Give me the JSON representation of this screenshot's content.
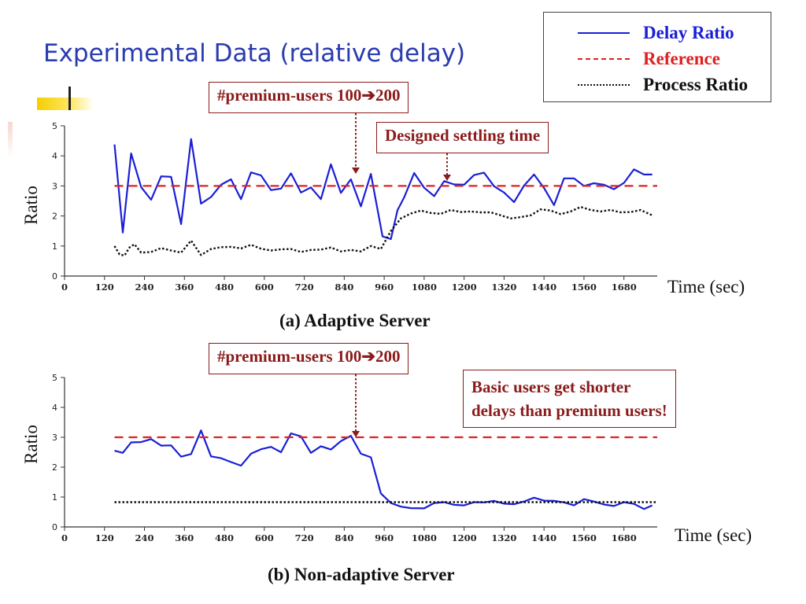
{
  "slide": {
    "title": "Experimental Data (relative delay)"
  },
  "legend": [
    {
      "label": "Delay Ratio",
      "color": "#1a1fd6",
      "style": "solid"
    },
    {
      "label": "Reference",
      "color": "#e02020",
      "style": "dashed"
    },
    {
      "label": "Process Ratio",
      "color": "#111111",
      "style": "dotted"
    }
  ],
  "callouts": {
    "premium_users_a": "#premium-users 100➔200",
    "settling_time": "Designed settling time",
    "premium_users_b": "#premium-users 100➔200",
    "basic_users_line1": "Basic users get shorter",
    "basic_users_line2": "delays than premium users!"
  },
  "chart_data": [
    {
      "type": "line",
      "caption": "(a) Adaptive Server",
      "xlabel": "Time (sec)",
      "ylabel": "Ratio",
      "xlim": [
        0,
        1780
      ],
      "ylim": [
        0,
        5
      ],
      "xticks": [
        0,
        120,
        240,
        360,
        480,
        600,
        720,
        840,
        960,
        1080,
        1200,
        1320,
        1440,
        1560,
        1680
      ],
      "yticks": [
        0,
        1,
        2,
        3,
        4,
        5
      ],
      "series": [
        {
          "name": "Delay Ratio",
          "color": "#1a1fd6",
          "style": "solid",
          "x": [
            150,
            175,
            200,
            230,
            260,
            290,
            320,
            350,
            380,
            410,
            440,
            470,
            500,
            530,
            560,
            590,
            620,
            650,
            680,
            710,
            740,
            770,
            800,
            830,
            860,
            890,
            920,
            955,
            980,
            1000,
            1020,
            1050,
            1080,
            1110,
            1140,
            1170,
            1200,
            1230,
            1260,
            1290,
            1320,
            1350,
            1380,
            1410,
            1440,
            1470,
            1500,
            1530,
            1560,
            1590,
            1620,
            1650,
            1680,
            1710,
            1740,
            1765
          ],
          "y": [
            4.38,
            1.45,
            4.08,
            2.96,
            2.54,
            3.32,
            3.3,
            1.73,
            4.56,
            2.41,
            2.63,
            3.04,
            3.22,
            2.56,
            3.45,
            3.35,
            2.86,
            2.91,
            3.42,
            2.78,
            2.95,
            2.56,
            3.72,
            2.77,
            3.22,
            2.32,
            3.4,
            1.32,
            1.23,
            2.19,
            2.62,
            3.43,
            2.94,
            2.66,
            3.16,
            3.05,
            3.04,
            3.36,
            3.44,
            2.99,
            2.78,
            2.46,
            3.01,
            3.38,
            2.93,
            2.36,
            3.25,
            3.25,
            3.0,
            3.09,
            3.04,
            2.89,
            3.1,
            3.55,
            3.38,
            3.38
          ]
        },
        {
          "name": "Reference",
          "color": "#e02020",
          "style": "dashed",
          "x": [
            150,
            1780
          ],
          "y": [
            3.0,
            3.0
          ]
        },
        {
          "name": "Process Ratio",
          "color": "#111111",
          "style": "dotted",
          "x": [
            150,
            165,
            180,
            195,
            210,
            230,
            260,
            290,
            320,
            350,
            380,
            410,
            440,
            470,
            500,
            530,
            560,
            590,
            620,
            650,
            680,
            710,
            740,
            770,
            800,
            830,
            860,
            890,
            920,
            950,
            980,
            1010,
            1040,
            1070,
            1100,
            1130,
            1160,
            1190,
            1220,
            1250,
            1280,
            1310,
            1340,
            1370,
            1400,
            1430,
            1460,
            1490,
            1520,
            1550,
            1580,
            1610,
            1640,
            1670,
            1700,
            1730,
            1765
          ],
          "y": [
            1.0,
            0.72,
            0.68,
            0.95,
            1.06,
            0.78,
            0.8,
            0.93,
            0.85,
            0.78,
            1.18,
            0.7,
            0.9,
            0.96,
            0.97,
            0.92,
            1.04,
            0.91,
            0.85,
            0.89,
            0.9,
            0.8,
            0.87,
            0.88,
            0.95,
            0.82,
            0.87,
            0.82,
            1.0,
            0.9,
            1.5,
            1.92,
            2.08,
            2.18,
            2.1,
            2.07,
            2.2,
            2.13,
            2.15,
            2.12,
            2.12,
            2.02,
            1.92,
            1.96,
            2.02,
            2.22,
            2.18,
            2.06,
            2.15,
            2.3,
            2.2,
            2.15,
            2.2,
            2.12,
            2.13,
            2.2,
            2.02
          ]
        }
      ]
    },
    {
      "type": "line",
      "caption": "(b) Non-adaptive Server",
      "xlabel": "Time (sec)",
      "ylabel": "Ratio",
      "xlim": [
        0,
        1780
      ],
      "ylim": [
        0,
        5
      ],
      "xticks": [
        0,
        120,
        240,
        360,
        480,
        600,
        720,
        840,
        960,
        1080,
        1200,
        1320,
        1440,
        1560,
        1680
      ],
      "yticks": [
        0,
        1,
        2,
        3,
        4,
        5
      ],
      "series": [
        {
          "name": "Delay Ratio",
          "color": "#1a1fd6",
          "style": "solid",
          "x": [
            150,
            175,
            200,
            230,
            260,
            290,
            320,
            350,
            380,
            410,
            440,
            470,
            500,
            530,
            560,
            590,
            620,
            650,
            680,
            710,
            740,
            770,
            800,
            830,
            860,
            890,
            920,
            950,
            980,
            1010,
            1040,
            1080,
            1110,
            1140,
            1170,
            1200,
            1230,
            1260,
            1290,
            1320,
            1350,
            1380,
            1410,
            1440,
            1470,
            1500,
            1530,
            1560,
            1590,
            1620,
            1650,
            1680,
            1710,
            1740,
            1765
          ],
          "y": [
            2.55,
            2.48,
            2.83,
            2.84,
            2.94,
            2.72,
            2.73,
            2.35,
            2.44,
            3.23,
            2.36,
            2.3,
            2.17,
            2.05,
            2.45,
            2.6,
            2.68,
            2.5,
            3.13,
            3.03,
            2.48,
            2.7,
            2.59,
            2.87,
            3.05,
            2.45,
            2.33,
            1.12,
            0.8,
            0.68,
            0.63,
            0.62,
            0.8,
            0.83,
            0.74,
            0.72,
            0.83,
            0.82,
            0.87,
            0.78,
            0.76,
            0.85,
            0.98,
            0.88,
            0.87,
            0.82,
            0.72,
            0.93,
            0.85,
            0.75,
            0.7,
            0.83,
            0.77,
            0.6,
            0.72
          ]
        },
        {
          "name": "Reference",
          "color": "#e02020",
          "style": "dashed",
          "x": [
            150,
            1780
          ],
          "y": [
            3.0,
            3.0
          ]
        },
        {
          "name": "Process Ratio",
          "color": "#111111",
          "style": "dotted",
          "x": [
            150,
            1780
          ],
          "y": [
            0.83,
            0.83
          ]
        }
      ]
    }
  ]
}
